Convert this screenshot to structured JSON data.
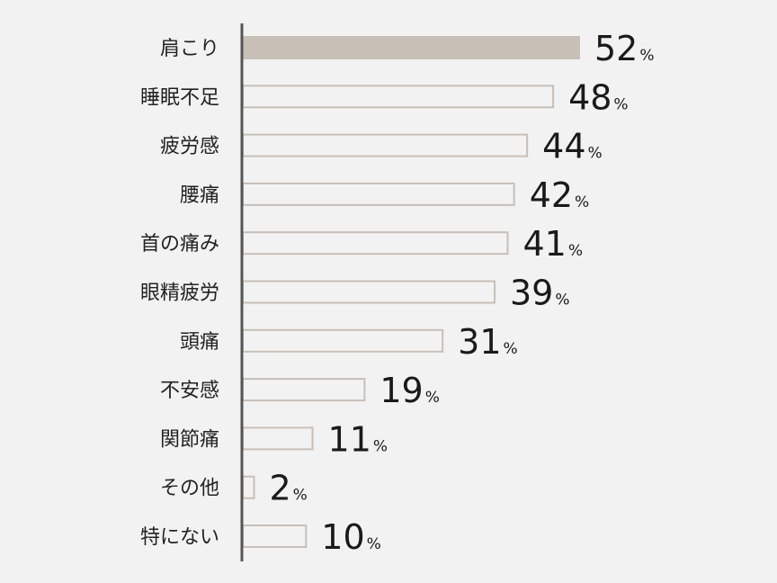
{
  "chart_data": {
    "type": "bar",
    "orientation": "horizontal",
    "categories": [
      "肩こり",
      "睡眠不足",
      "疲労感",
      "腰痛",
      "首の痛み",
      "眼精疲労",
      "頭痛",
      "不安感",
      "関節痛",
      "その他",
      "特にない"
    ],
    "values": [
      52,
      48,
      44,
      42,
      41,
      39,
      31,
      19,
      11,
      2,
      10
    ],
    "value_suffix": "%",
    "title": "",
    "xlabel": "",
    "ylabel": "",
    "xlim": [
      0,
      52
    ],
    "grid": false,
    "legend": "none",
    "highlight_index": 0,
    "colors": {
      "highlight_fill": "#c8bfb7",
      "bar_fill": "#f2f2f2",
      "bar_stroke": "#c8bfb7",
      "axis": "#555555",
      "background": "#f2f2f2"
    }
  }
}
